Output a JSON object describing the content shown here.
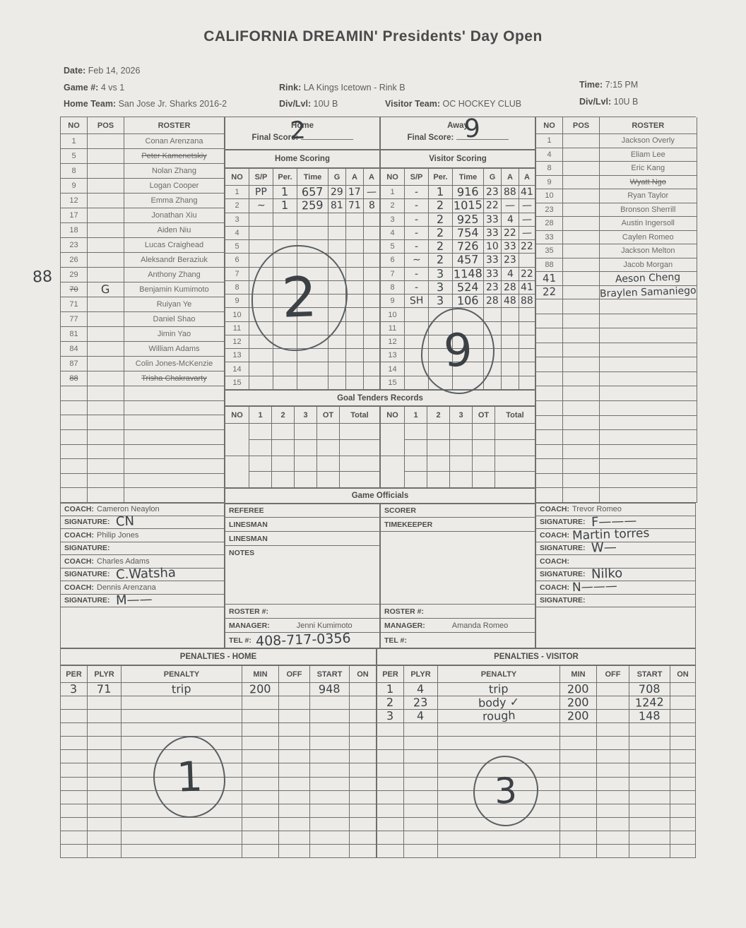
{
  "title": "CALIFORNIA DREAMIN' Presidents' Day Open",
  "header": {
    "date_label": "Date:",
    "date": "Feb 14, 2026",
    "game_label": "Game #:",
    "game": "4 vs 1",
    "rink_label": "Rink:",
    "rink": "LA Kings Icetown - Rink B",
    "time_label": "Time:",
    "time": "7:15 PM",
    "home_team_label": "Home Team:",
    "home_team": "San Jose Jr. Sharks 2016-2",
    "home_div_label": "Div/Lvl:",
    "home_div": "10U B",
    "visitor_team_label": "Visitor Team:",
    "visitor_team": "OC HOCKEY CLUB",
    "visitor_div_label": "Div/Lvl:",
    "visitor_div": "10U B"
  },
  "margin_note": "88",
  "home_roster": {
    "headers": [
      "NO",
      "POS",
      "ROSTER"
    ],
    "empty_rows": 8,
    "players": [
      {
        "no": "1",
        "pos": "",
        "name": "Conan Arenzana"
      },
      {
        "no": "5",
        "pos": "",
        "name": "Peter Kamenetskiy",
        "struck": true
      },
      {
        "no": "8",
        "pos": "",
        "name": "Nolan Zhang"
      },
      {
        "no": "9",
        "pos": "",
        "name": "Logan Cooper"
      },
      {
        "no": "12",
        "pos": "",
        "name": "Emma Zhang"
      },
      {
        "no": "17",
        "pos": "",
        "name": "Jonathan Xiu"
      },
      {
        "no": "18",
        "pos": "",
        "name": "Aiden Niu"
      },
      {
        "no": "23",
        "pos": "",
        "name": "Lucas Craighead"
      },
      {
        "no": "26",
        "pos": "",
        "name": "Aleksandr Beraziuk"
      },
      {
        "no": "29",
        "pos": "",
        "name": "Anthony Zhang"
      },
      {
        "no": "70",
        "no_struck": true,
        "pos": "G",
        "pos_hw": true,
        "name": "Benjamin Kumimoto"
      },
      {
        "no": "71",
        "pos": "",
        "name": "Ruiyan Ye"
      },
      {
        "no": "77",
        "pos": "",
        "name": "Daniel Shao"
      },
      {
        "no": "81",
        "pos": "",
        "name": "Jimin Yao"
      },
      {
        "no": "84",
        "pos": "",
        "name": "William Adams"
      },
      {
        "no": "87",
        "pos": "",
        "name": "Colin Jones-McKenzie"
      },
      {
        "no": "88",
        "no_struck": true,
        "pos": "",
        "name": "Trisha Chakravarty",
        "struck": true
      }
    ]
  },
  "visitor_roster": {
    "headers": [
      "NO",
      "POS",
      "ROSTER"
    ],
    "empty_rows": 14,
    "players": [
      {
        "no": "1",
        "pos": "",
        "name": "Jackson Overly"
      },
      {
        "no": "4",
        "pos": "",
        "name": "Eliam Lee"
      },
      {
        "no": "8",
        "pos": "",
        "name": "Eric Kang"
      },
      {
        "no": "9",
        "pos": "",
        "name": "Wyatt Ngo",
        "struck": true
      },
      {
        "no": "10",
        "pos": "",
        "name": "Ryan Taylor"
      },
      {
        "no": "23",
        "pos": "",
        "name": "Bronson Sherrill"
      },
      {
        "no": "28",
        "pos": "",
        "name": "Austin Ingersoll"
      },
      {
        "no": "33",
        "pos": "",
        "name": "Caylen Romeo"
      },
      {
        "no": "35",
        "pos": "",
        "name": "Jackson Melton"
      },
      {
        "no": "88",
        "pos": "",
        "name": "Jacob Morgan"
      },
      {
        "no": "41",
        "no_hw": true,
        "pos": "",
        "name": "Aeson Cheng",
        "name_hw": true
      },
      {
        "no": "22",
        "no_hw": true,
        "pos": "",
        "name": "Braylen Samaniego",
        "name_hw": true
      }
    ]
  },
  "scoreboard": {
    "home_label": "Home",
    "away_label": "Away",
    "final_score_label": "Final Score:",
    "home_final_score": "2",
    "away_final_score": "9",
    "home_scoring_title": "Home Scoring",
    "visitor_scoring_title": "Visitor Scoring",
    "columns": [
      "NO",
      "S/P",
      "Per.",
      "Time",
      "G",
      "A",
      "A"
    ],
    "total_rows": 15,
    "home_rows": [
      {
        "sp": "PP",
        "per": "1",
        "time": "657",
        "g": "29",
        "a1": "17",
        "a2": "—"
      },
      {
        "sp": "~",
        "per": "1",
        "time": "259",
        "g": "81",
        "a1": "71",
        "a2": "8"
      }
    ],
    "visitor_rows": [
      {
        "sp": "-",
        "per": "1",
        "time": "916",
        "g": "23",
        "a1": "88",
        "a2": "41"
      },
      {
        "sp": "-",
        "per": "2",
        "time": "1015",
        "g": "22",
        "a1": "—",
        "a2": "—"
      },
      {
        "sp": "-",
        "per": "2",
        "time": "925",
        "g": "33",
        "a1": "4",
        "a2": "—"
      },
      {
        "sp": "-",
        "per": "2",
        "time": "754",
        "g": "33",
        "a1": "22",
        "a2": "—"
      },
      {
        "sp": "-",
        "per": "2",
        "time": "726",
        "g": "10",
        "a1": "33",
        "a2": "22"
      },
      {
        "sp": "~",
        "per": "2",
        "time": "457",
        "g": "33",
        "a1": "23",
        "a2": ""
      },
      {
        "sp": "-",
        "per": "3",
        "time": "1148",
        "g": "33",
        "a1": "4",
        "a2": "22"
      },
      {
        "sp": "-",
        "per": "3",
        "time": "524",
        "g": "23",
        "a1": "28",
        "a2": "41"
      },
      {
        "sp": "SH",
        "per": "3",
        "time": "106",
        "g": "28",
        "a1": "48",
        "a2": "88"
      }
    ],
    "home_circle": "2",
    "visitor_circle": "9"
  },
  "goal_tenders": {
    "title": "Goal Tenders Records",
    "columns": [
      "NO",
      "1",
      "2",
      "3",
      "OT",
      "Total"
    ]
  },
  "officials": {
    "title": "Game Officials",
    "referee_label": "REFEREE",
    "linesman1_label": "LINESMAN",
    "linesman2_label": "LINESMAN",
    "notes_label": "NOTES",
    "scorer_label": "SCORER",
    "timekeeper_label": "TIMEKEEPER"
  },
  "admin": {
    "roster_label": "ROSTER #:",
    "manager_label": "MANAGER:",
    "tel_label": "TEL #:",
    "home_manager": "Jenni Kumimoto",
    "home_tel": "408-717-0356",
    "visitor_manager": "Amanda Romeo",
    "visitor_tel": ""
  },
  "home_coaches": {
    "coach_label": "COACH:",
    "signature_label": "SIGNATURE:",
    "rows": [
      {
        "name": "Cameron Neaylon",
        "signature": "CN"
      },
      {
        "name": "Philip Jones",
        "signature": ""
      },
      {
        "name": "Charles Adams",
        "signature": "C.Watsha"
      },
      {
        "name": "Dennis Arenzana",
        "signature": "M——"
      }
    ]
  },
  "visitor_coaches": {
    "coach_label": "COACH:",
    "signature_label": "SIGNATURE:",
    "rows": [
      {
        "name": "Trevor Romeo",
        "signature": "F———"
      },
      {
        "name": "Martin torres",
        "name_hw": true,
        "signature": "W—"
      },
      {
        "name": "",
        "signature": "Nilko"
      },
      {
        "name": "N———",
        "name_hw": true,
        "signature": ""
      }
    ]
  },
  "penalties": {
    "home_title": "PENALTIES - HOME",
    "visitor_title": "PENALTIES - VISITOR",
    "columns": [
      "PER",
      "PLYR",
      "PENALTY",
      "MIN",
      "OFF",
      "START",
      "ON"
    ],
    "total_rows": 13,
    "home_rows": [
      {
        "per": "3",
        "plyr": "71",
        "penalty": "trip",
        "min": "200",
        "off": "",
        "start": "948",
        "on": ""
      }
    ],
    "visitor_rows": [
      {
        "per": "1",
        "plyr": "4",
        "penalty": "trip",
        "min": "200",
        "off": "",
        "start": "708",
        "on": ""
      },
      {
        "per": "2",
        "plyr": "23",
        "penalty": "body ✓",
        "min": "200",
        "off": "",
        "start": "1242",
        "on": ""
      },
      {
        "per": "3",
        "plyr": "4",
        "penalty": "rough",
        "min": "200",
        "off": "",
        "start": "148",
        "on": ""
      }
    ],
    "home_circle": "1",
    "visitor_circle": "3"
  }
}
